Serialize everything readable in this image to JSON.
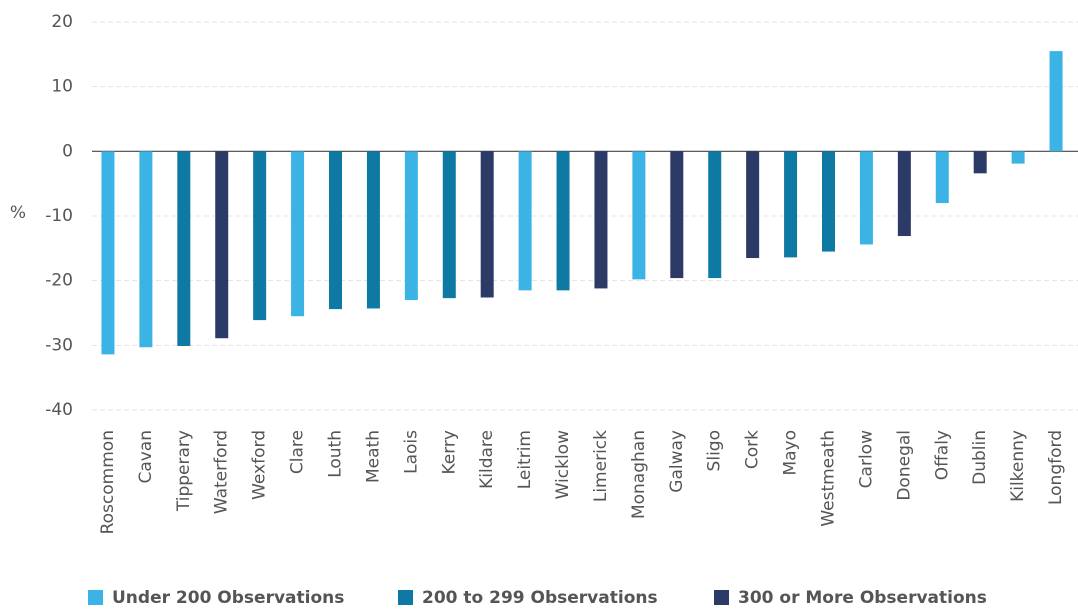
{
  "chart_data": {
    "type": "bar",
    "y_label": "%",
    "categories": [
      "Roscommon",
      "Cavan",
      "Tipperary",
      "Waterford",
      "Wexford",
      "Clare",
      "Louth",
      "Meath",
      "Laois",
      "Kerry",
      "Kildare",
      "Leitrim",
      "Wicklow",
      "Limerick",
      "Monaghan",
      "Galway",
      "Sligo",
      "Cork",
      "Mayo",
      "Westmeath",
      "Carlow",
      "Donegal",
      "Offaly",
      "Dublin",
      "Kilkenny",
      "Longford"
    ],
    "series": [
      {
        "name": "Under 200 Observations",
        "color": "#3bb4e5",
        "values": [
          -31.4,
          -30.3,
          null,
          null,
          null,
          -25.5,
          null,
          null,
          -23.0,
          null,
          null,
          -21.5,
          null,
          null,
          -19.8,
          null,
          null,
          null,
          null,
          null,
          -14.4,
          null,
          -8.0,
          null,
          -1.9,
          15.5
        ]
      },
      {
        "name": "200 to 299 Observations",
        "color": "#0e7aa3",
        "values": [
          null,
          null,
          -30.1,
          null,
          -26.1,
          null,
          -24.4,
          -24.3,
          null,
          -22.7,
          null,
          null,
          -21.5,
          null,
          null,
          null,
          -19.6,
          null,
          -16.4,
          -15.5,
          null,
          null,
          null,
          null,
          null,
          null
        ]
      },
      {
        "name": "300 or More Observations",
        "color": "#2b3a67",
        "values": [
          null,
          null,
          null,
          -28.9,
          null,
          null,
          null,
          null,
          null,
          null,
          -22.6,
          null,
          null,
          -21.2,
          null,
          -19.6,
          null,
          -16.5,
          null,
          null,
          null,
          -13.1,
          null,
          -3.4,
          null,
          null
        ]
      }
    ],
    "ylim": [
      -40,
      20
    ],
    "yticks": [
      -40,
      -30,
      -20,
      -10,
      0,
      10,
      20
    ],
    "grid": true
  }
}
